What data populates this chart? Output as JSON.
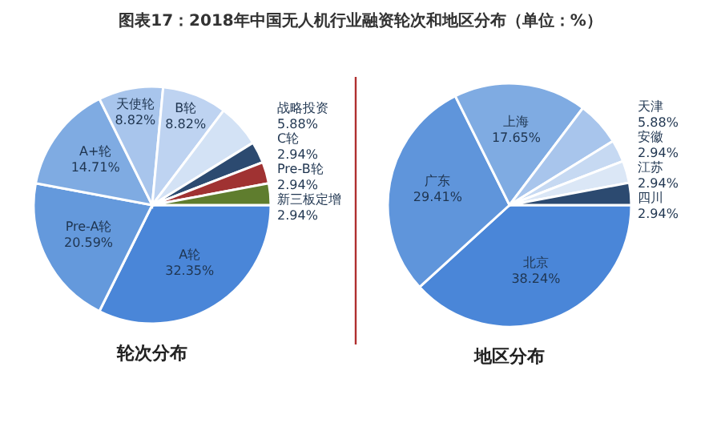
{
  "chart_data": [
    {
      "type": "pie",
      "title": "图表17：2018年中国无人机行业融资轮次和地区分布（单位：%）",
      "subtitle": "轮次分布",
      "categories": [
        "A轮",
        "Pre-A轮",
        "A+轮",
        "天使轮",
        "B轮",
        "战略投资",
        "C轮",
        "Pre-B轮",
        "新三板定增"
      ],
      "values": [
        32.35,
        20.59,
        14.71,
        8.82,
        8.82,
        5.88,
        2.94,
        2.94,
        2.94
      ],
      "colors": [
        "#4a86d8",
        "#6499dc",
        "#7fabe2",
        "#a8c5ec",
        "#bed3f1",
        "#d3e2f5",
        "#2c4a70",
        "#a03232",
        "#5f7d2e"
      ],
      "value_labels": [
        "32.35%",
        "20.59%",
        "14.71%",
        "8.82%",
        "8.82%",
        "5.88%",
        "2.94%",
        "2.94%",
        "2.94%"
      ]
    },
    {
      "type": "pie",
      "subtitle": "地区分布",
      "categories": [
        "北京",
        "广东",
        "上海",
        "天津",
        "安徽",
        "江苏",
        "四川"
      ],
      "values": [
        38.24,
        29.41,
        17.65,
        5.88,
        2.94,
        2.94,
        2.94
      ],
      "colors": [
        "#4a86d8",
        "#5f95db",
        "#7fabe2",
        "#a8c5ec",
        "#c6d9f2",
        "#dbe7f6",
        "#2c4a70"
      ],
      "value_labels": [
        "38.24%",
        "29.41%",
        "17.65%",
        "5.88%",
        "2.94%",
        "2.94%",
        "2.94%"
      ]
    }
  ]
}
